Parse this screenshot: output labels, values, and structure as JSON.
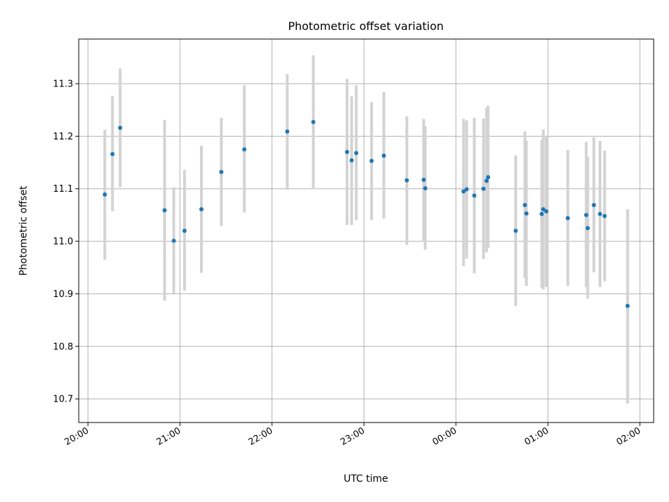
{
  "chart_data": {
    "type": "scatter",
    "title": "Photometric offset variation",
    "xlabel": "UTC time",
    "ylabel": "Photometric offset",
    "x_axis": {
      "kind": "time",
      "unit": "hours since 20:00 UTC",
      "range": [
        -0.1,
        6.15
      ],
      "ticks": [
        {
          "value": 0,
          "label": "20:00"
        },
        {
          "value": 1,
          "label": "21:00"
        },
        {
          "value": 2,
          "label": "22:00"
        },
        {
          "value": 3,
          "label": "23:00"
        },
        {
          "value": 4,
          "label": "00:00"
        },
        {
          "value": 5,
          "label": "01:00"
        },
        {
          "value": 6,
          "label": "02:00"
        }
      ]
    },
    "y_axis": {
      "range": [
        10.655,
        11.385
      ],
      "ticks": [
        {
          "value": 10.7,
          "label": "10.7"
        },
        {
          "value": 10.8,
          "label": "10.8"
        },
        {
          "value": 10.9,
          "label": "10.9"
        },
        {
          "value": 11.0,
          "label": "11.0"
        },
        {
          "value": 11.1,
          "label": "11.1"
        },
        {
          "value": 11.2,
          "label": "11.2"
        },
        {
          "value": 11.3,
          "label": "11.3"
        }
      ]
    },
    "grid": true,
    "colors": {
      "point": "#1f77b4",
      "error_bar": "#d3d3d3",
      "grid": "#b0b0b0"
    },
    "points": [
      {
        "t": "20:11",
        "y": 11.089,
        "lo": 10.965,
        "hi": 11.212
      },
      {
        "t": "20:16",
        "y": 11.166,
        "lo": 11.057,
        "hi": 11.277
      },
      {
        "t": "20:21",
        "y": 11.216,
        "lo": 11.103,
        "hi": 11.329
      },
      {
        "t": "20:50",
        "y": 11.059,
        "lo": 10.887,
        "hi": 11.231
      },
      {
        "t": "20:56",
        "y": 11.001,
        "lo": 10.901,
        "hi": 11.103
      },
      {
        "t": "21:03",
        "y": 11.02,
        "lo": 10.906,
        "hi": 11.136
      },
      {
        "t": "21:14",
        "y": 11.061,
        "lo": 10.94,
        "hi": 11.182
      },
      {
        "t": "21:27",
        "y": 11.132,
        "lo": 11.029,
        "hi": 11.235
      },
      {
        "t": "21:42",
        "y": 11.175,
        "lo": 11.055,
        "hi": 11.297
      },
      {
        "t": "22:10",
        "y": 11.209,
        "lo": 11.098,
        "hi": 11.318
      },
      {
        "t": "22:27",
        "y": 11.227,
        "lo": 11.1,
        "hi": 11.354
      },
      {
        "t": "22:49",
        "y": 11.17,
        "lo": 11.031,
        "hi": 11.309
      },
      {
        "t": "22:52",
        "y": 11.154,
        "lo": 11.031,
        "hi": 11.276
      },
      {
        "t": "22:55",
        "y": 11.168,
        "lo": 11.04,
        "hi": 11.297
      },
      {
        "t": "23:05",
        "y": 11.153,
        "lo": 11.04,
        "hi": 11.265
      },
      {
        "t": "23:13",
        "y": 11.163,
        "lo": 11.043,
        "hi": 11.284
      },
      {
        "t": "23:28",
        "y": 11.116,
        "lo": 10.993,
        "hi": 11.238
      },
      {
        "t": "23:39",
        "y": 11.117,
        "lo": 10.999,
        "hi": 11.233
      },
      {
        "t": "23:40",
        "y": 11.101,
        "lo": 10.984,
        "hi": 11.219
      },
      {
        "t": "00:05",
        "y": 11.095,
        "lo": 10.953,
        "hi": 11.233
      },
      {
        "t": "00:07",
        "y": 11.099,
        "lo": 10.967,
        "hi": 11.23
      },
      {
        "t": "00:12",
        "y": 11.087,
        "lo": 10.939,
        "hi": 11.235
      },
      {
        "t": "00:18",
        "y": 11.1,
        "lo": 10.966,
        "hi": 11.234
      },
      {
        "t": "00:20",
        "y": 11.115,
        "lo": 10.979,
        "hi": 11.254
      },
      {
        "t": "00:21",
        "y": 11.122,
        "lo": 10.987,
        "hi": 11.258
      },
      {
        "t": "00:39",
        "y": 11.02,
        "lo": 10.877,
        "hi": 11.163
      },
      {
        "t": "00:45",
        "y": 11.069,
        "lo": 10.93,
        "hi": 11.209
      },
      {
        "t": "00:46",
        "y": 11.053,
        "lo": 10.915,
        "hi": 11.191
      },
      {
        "t": "00:56",
        "y": 11.052,
        "lo": 10.912,
        "hi": 11.193
      },
      {
        "t": "00:57",
        "y": 11.061,
        "lo": 10.908,
        "hi": 11.213
      },
      {
        "t": "00:59",
        "y": 11.057,
        "lo": 10.913,
        "hi": 11.201
      },
      {
        "t": "01:13",
        "y": 11.044,
        "lo": 10.915,
        "hi": 11.174
      },
      {
        "t": "01:25",
        "y": 11.05,
        "lo": 10.913,
        "hi": 11.189
      },
      {
        "t": "01:26",
        "y": 11.025,
        "lo": 10.891,
        "hi": 11.161
      },
      {
        "t": "01:30",
        "y": 11.069,
        "lo": 10.941,
        "hi": 11.198
      },
      {
        "t": "01:34",
        "y": 11.052,
        "lo": 10.913,
        "hi": 11.191
      },
      {
        "t": "01:37",
        "y": 11.048,
        "lo": 10.924,
        "hi": 11.173
      },
      {
        "t": "01:52",
        "y": 10.877,
        "lo": 10.691,
        "hi": 11.061
      }
    ]
  }
}
